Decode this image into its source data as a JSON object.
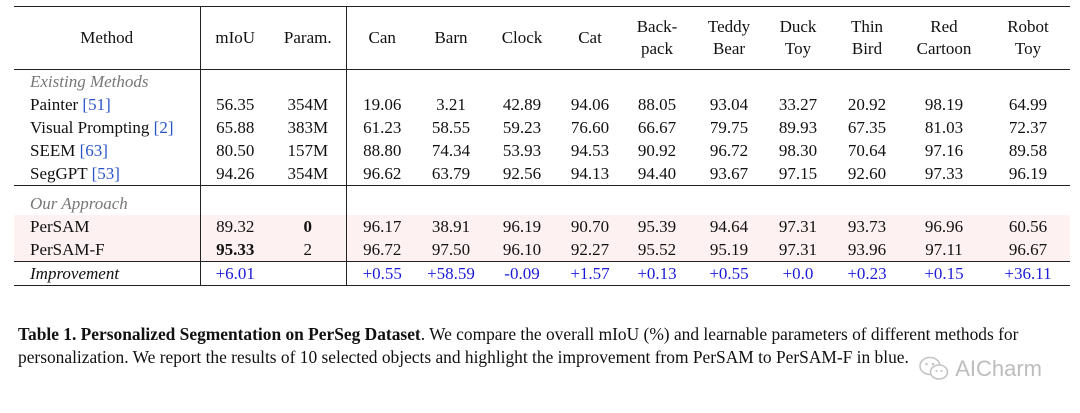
{
  "table": {
    "headers": [
      {
        "key": "method",
        "lines": [
          "Method"
        ]
      },
      {
        "key": "miou",
        "lines": [
          "mIoU"
        ]
      },
      {
        "key": "param",
        "lines": [
          "Param."
        ]
      },
      {
        "key": "can",
        "lines": [
          "Can"
        ]
      },
      {
        "key": "barn",
        "lines": [
          "Barn"
        ]
      },
      {
        "key": "clock",
        "lines": [
          "Clock"
        ]
      },
      {
        "key": "cat",
        "lines": [
          "Cat"
        ]
      },
      {
        "key": "backpack",
        "lines": [
          "Back-",
          "pack"
        ]
      },
      {
        "key": "teddy",
        "lines": [
          "Teddy",
          "Bear"
        ]
      },
      {
        "key": "duck",
        "lines": [
          "Duck",
          "Toy"
        ]
      },
      {
        "key": "thin",
        "lines": [
          "Thin",
          "Bird"
        ]
      },
      {
        "key": "red",
        "lines": [
          "Red",
          "Cartoon"
        ]
      },
      {
        "key": "robot",
        "lines": [
          "Robot",
          "Toy"
        ]
      }
    ],
    "section_existing": "Existing Methods",
    "existing_rows": [
      {
        "name": "Painter",
        "ref": "[51]",
        "miou": "56.35",
        "param": "354M",
        "values": [
          "19.06",
          "3.21",
          "42.89",
          "94.06",
          "88.05",
          "93.04",
          "33.27",
          "20.92",
          "98.19",
          "64.99"
        ]
      },
      {
        "name": "Visual Prompting",
        "ref": "[2]",
        "miou": "65.88",
        "param": "383M",
        "values": [
          "61.23",
          "58.55",
          "59.23",
          "76.60",
          "66.67",
          "79.75",
          "89.93",
          "67.35",
          "81.03",
          "72.37"
        ]
      },
      {
        "name": "SEEM",
        "ref": "[63]",
        "miou": "80.50",
        "param": "157M",
        "values": [
          "88.80",
          "74.34",
          "53.93",
          "94.53",
          "90.92",
          "96.72",
          "98.30",
          "70.64",
          "97.16",
          "89.58"
        ]
      },
      {
        "name": "SegGPT",
        "ref": "[53]",
        "miou": "94.26",
        "param": "354M",
        "values": [
          "96.62",
          "63.79",
          "92.56",
          "94.13",
          "94.40",
          "93.67",
          "97.15",
          "92.60",
          "97.33",
          "96.19"
        ]
      }
    ],
    "section_ours": "Our Approach",
    "our_rows": [
      {
        "name": "PerSAM",
        "miou": "89.32",
        "param": "0",
        "bold_miou": false,
        "bold_param": true,
        "values": [
          "96.17",
          "38.91",
          "96.19",
          "90.70",
          "95.39",
          "94.64",
          "97.31",
          "93.73",
          "96.96",
          "60.56"
        ]
      },
      {
        "name": "PerSAM-F",
        "miou": "95.33",
        "param": "2",
        "bold_miou": true,
        "bold_param": false,
        "values": [
          "96.72",
          "97.50",
          "96.10",
          "92.27",
          "95.52",
          "95.19",
          "97.31",
          "93.96",
          "97.11",
          "96.67"
        ]
      }
    ],
    "improvement": {
      "name": "Improvement",
      "miou": "+6.01",
      "param": "",
      "values": [
        "+0.55",
        "+58.59",
        "-0.09",
        "+1.57",
        "+0.13",
        "+0.55",
        "+0.0",
        "+0.23",
        "+0.15",
        "+36.11"
      ]
    }
  },
  "caption": {
    "label": "Table 1.",
    "title": "Personalized Segmentation on PerSeg Dataset",
    "text": ". We compare the overall mIoU (%) and learnable parameters of different methods for personalization. We report the results of 10 selected objects and highlight the improvement from PerSAM to PerSAM-F in blue."
  },
  "watermark": {
    "text": "AICharm",
    "icon": "wechat-logo-icon"
  }
}
